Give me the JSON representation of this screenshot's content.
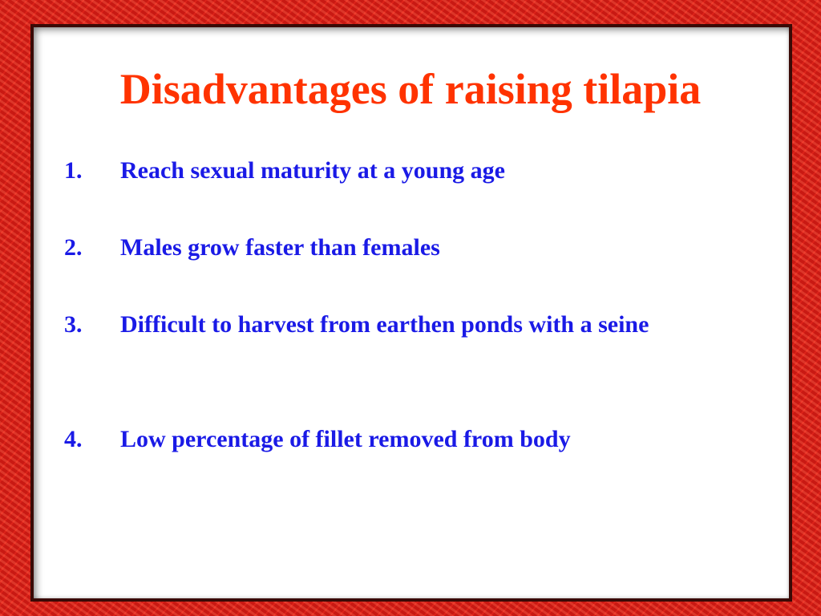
{
  "title": "Disadvantages of raising tilapia",
  "items": [
    {
      "number": "1.",
      "text": "Reach sexual maturity at a young age"
    },
    {
      "number": "2.",
      "text": "Males grow faster than females"
    },
    {
      "number": "3.",
      "text": "Difficult to harvest from earthen ponds with a seine"
    },
    {
      "number": "4.",
      "text": "Low percentage of fillet removed from body"
    }
  ]
}
